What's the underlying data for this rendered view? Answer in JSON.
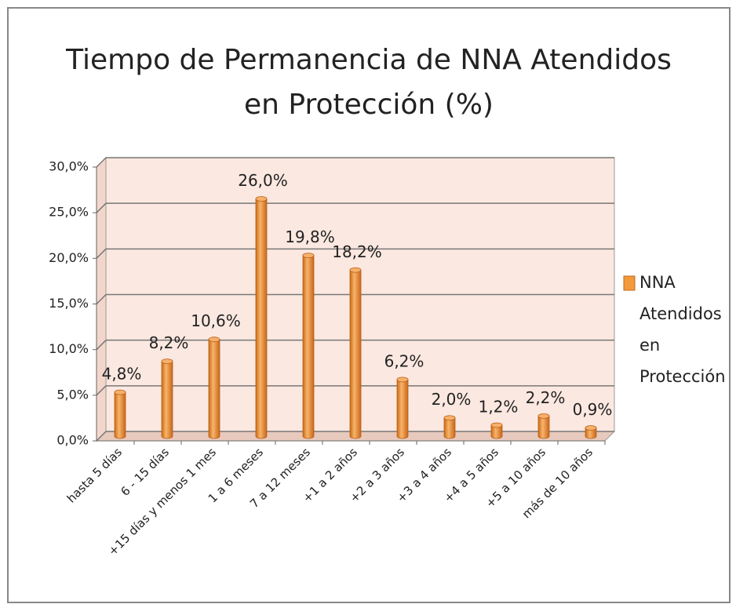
{
  "chart_data": {
    "type": "bar",
    "title": [
      "Tiempo de Permanencia de NNA Atendidos",
      "en Protección (%)"
    ],
    "categories": [
      "hasta 5 días",
      "6 - 15 días",
      "+15 días y menos 1 mes",
      "1 a 6 meses",
      "7 a 12 meses",
      "+1 a 2 años",
      "+2 a 3 años",
      "+3 a 4 años",
      "+4 a 5 años",
      "+5 a 10 años",
      "más de 10 años"
    ],
    "series": [
      {
        "name": "NNA Atendidos en Protección",
        "color": "#f39a3d",
        "values": [
          4.8,
          8.2,
          10.6,
          26.0,
          19.8,
          18.2,
          6.2,
          2.0,
          1.2,
          2.2,
          0.9
        ],
        "value_labels": [
          "4,8%",
          "8,2%",
          "10,6%",
          "26,0%",
          "19,8%",
          "18,2%",
          "6,2%",
          "2,0%",
          "1,2%",
          "2,2%",
          "0,9%"
        ]
      }
    ],
    "ylim": [
      0,
      30
    ],
    "yticks": [
      {
        "value": 0,
        "label": "0,0%"
      },
      {
        "value": 5,
        "label": "5,0%"
      },
      {
        "value": 10,
        "label": "10,0%"
      },
      {
        "value": 15,
        "label": "15,0%"
      },
      {
        "value": 20,
        "label": "20,0%"
      },
      {
        "value": 25,
        "label": "25,0%"
      },
      {
        "value": 30,
        "label": "30,0%"
      }
    ],
    "grid": true,
    "legend": "right"
  }
}
